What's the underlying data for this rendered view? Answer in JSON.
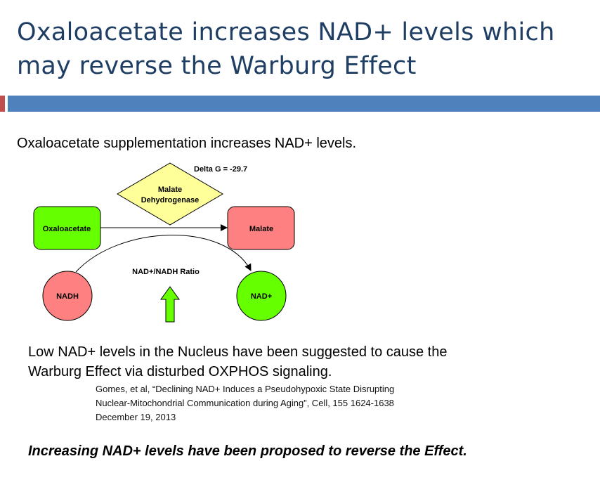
{
  "slide": {
    "title_lines": [
      "Oxaloacetate increases NAD+ levels which",
      "may reverse the Warburg Effect"
    ],
    "subtitle": "Oxaloacetate supplementation increases NAD+ levels.",
    "body_lines": [
      "Low NAD+ levels in the Nucleus have been suggested to cause the",
      "Warburg Effect via disturbed OXPHOS signaling."
    ],
    "citation_lines": [
      "Gomes, et al, “Declining NAD+ Induces a Pseudohypoxic State Disrupting",
      "Nuclear-Mitochondrial  Communication during Aging”, Cell, 155 1624-1638",
      "December 19, 2013"
    ],
    "conclusion": "Increasing NAD+ levels have been proposed to reverse the Effect."
  },
  "diagram": {
    "enzyme_lines": [
      "Malate",
      "Dehydrogenase"
    ],
    "delta_g": "Delta G = -29.7",
    "oxaloacetate": "Oxaloacetate",
    "malate": "Malate",
    "nadh": "NADH",
    "nad_plus": "NAD+",
    "ratio_label": "NAD+/NADH Ratio",
    "colors": {
      "green": "#66ff00",
      "red": "#ff8080",
      "yellow": "#ffff99",
      "title": "#1f3e64",
      "accent_blue": "#4f81bd",
      "accent_red": "#c0504d"
    }
  }
}
